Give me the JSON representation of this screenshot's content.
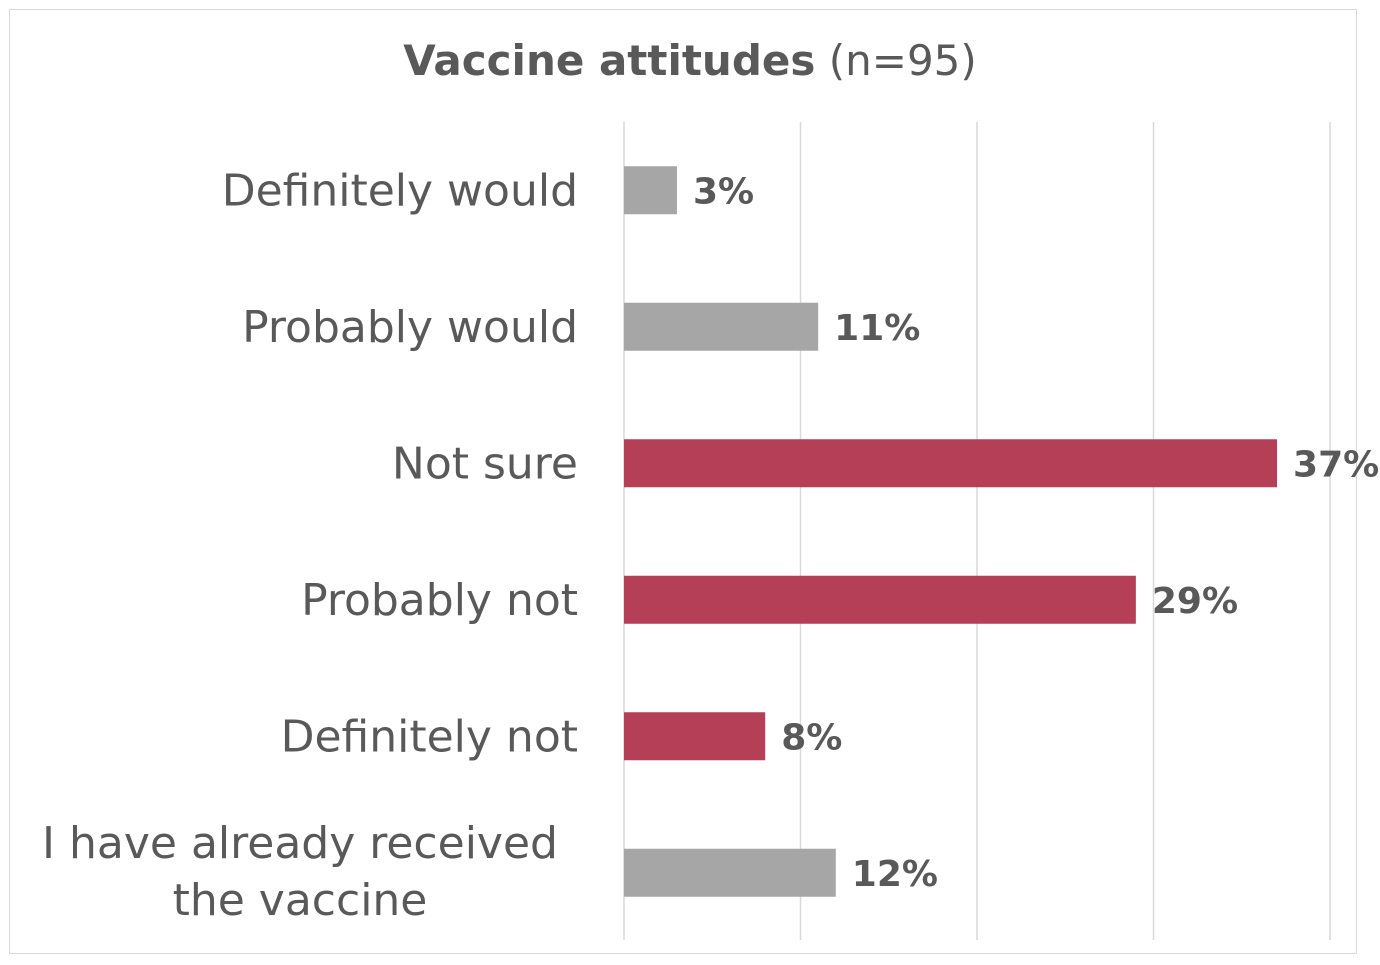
{
  "chart_data": {
    "type": "bar",
    "orientation": "horizontal",
    "title": "Vaccine attitudes",
    "subtitle": "(n=95)",
    "categories": [
      "Definitely would",
      "Probably would",
      "Not sure",
      "Probably not",
      "Definitely not",
      "I have already received the vaccine"
    ],
    "values": [
      3,
      11,
      37,
      29,
      8,
      12
    ],
    "value_labels": [
      "3%",
      "11%",
      "37%",
      "29%",
      "8%",
      "12%"
    ],
    "xlim": [
      0,
      40
    ],
    "gridlines": [
      0,
      10,
      20,
      30,
      40
    ],
    "colors": [
      "#a6a6a6",
      "#a6a6a6",
      "#b53f56",
      "#b53f56",
      "#b53f56",
      "#a6a6a6"
    ],
    "grid": true,
    "legend": "none"
  }
}
